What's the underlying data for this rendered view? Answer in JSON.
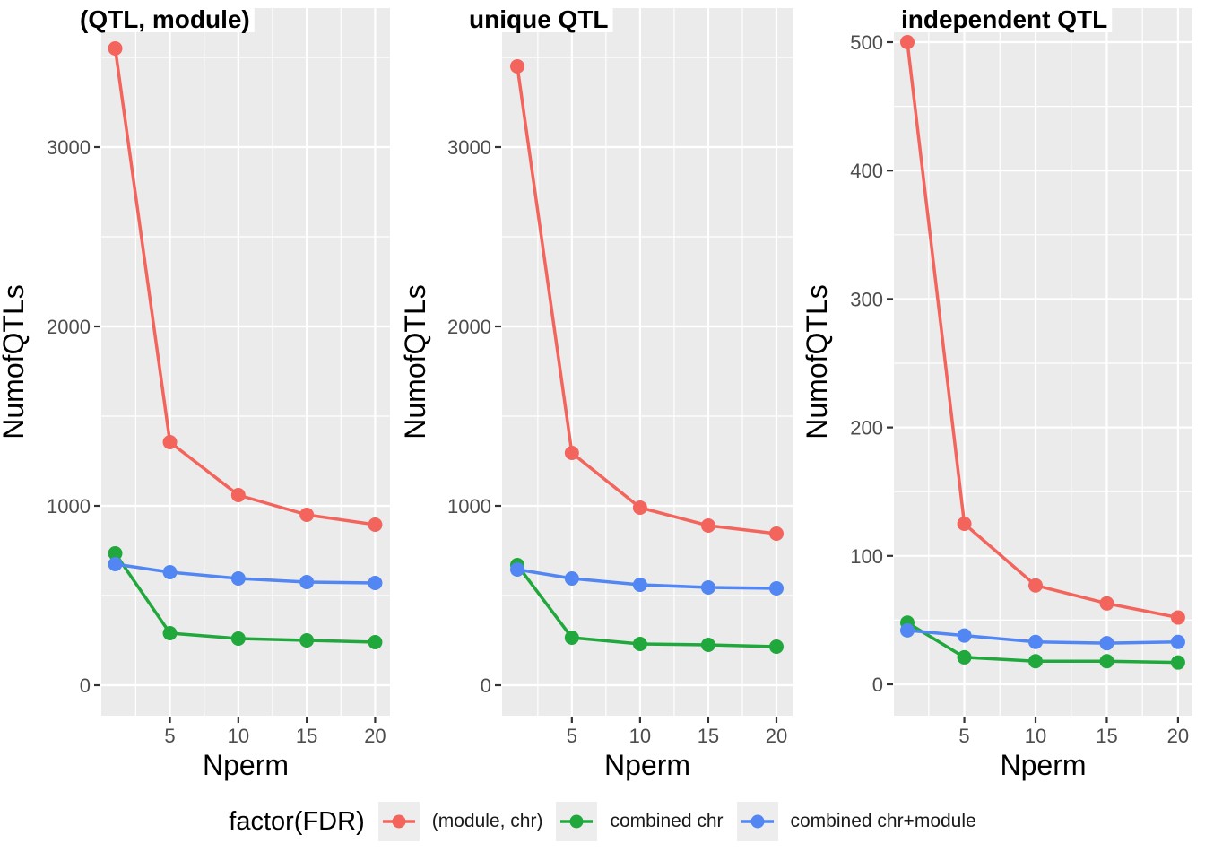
{
  "figure": {
    "x_axis_label": "Nperm",
    "y_axis_label": "NumofQTLs"
  },
  "colors": {
    "red": "#F3645C",
    "green": "#21A83C",
    "blue": "#5286F2",
    "panel_bg": "#EBEBEB",
    "grid": "#FFFFFF",
    "tick_mark": "#333333",
    "tick_text": "#4D4D4D",
    "axis_title_text": "#000000",
    "panel_title_text": "#000000"
  },
  "legend": {
    "title": "factor(FDR)",
    "entries": [
      {
        "label": "(module, chr)",
        "color": "red"
      },
      {
        "label": "combined chr",
        "color": "green"
      },
      {
        "label": "combined chr+module",
        "color": "blue"
      }
    ]
  },
  "chart_data": [
    {
      "type": "line",
      "title": "(QTL, module)",
      "xlabel": "Nperm",
      "ylabel": "NumofQTLs",
      "x": [
        1,
        5,
        10,
        15,
        20
      ],
      "xlim": [
        1,
        20
      ],
      "ylim": [
        0,
        3560
      ],
      "x_major_ticks": [
        5,
        10,
        15,
        20
      ],
      "x_minor_ticks": [
        2.5,
        7.5,
        12.5,
        17.5
      ],
      "y_major_ticks": [
        0,
        1000,
        2000,
        3000
      ],
      "y_minor_ticks": [
        500,
        1500,
        2500,
        3500
      ],
      "grid": true,
      "legend_position": "bottom",
      "series": [
        {
          "name": "(module, chr)",
          "color": "red",
          "values": [
            3550,
            1355,
            1060,
            950,
            895
          ]
        },
        {
          "name": "combined chr",
          "color": "green",
          "values": [
            735,
            290,
            260,
            250,
            240
          ]
        },
        {
          "name": "combined chr+module",
          "color": "blue",
          "values": [
            675,
            630,
            595,
            575,
            570
          ]
        }
      ]
    },
    {
      "type": "line",
      "title": "unique QTL",
      "xlabel": "Nperm",
      "ylabel": "NumofQTLs",
      "x": [
        1,
        5,
        10,
        15,
        20
      ],
      "xlim": [
        1,
        20
      ],
      "ylim": [
        0,
        3450
      ],
      "x_major_ticks": [
        5,
        10,
        15,
        20
      ],
      "x_minor_ticks": [
        2.5,
        7.5,
        12.5,
        17.5
      ],
      "y_major_ticks": [
        0,
        1000,
        2000,
        3000
      ],
      "y_minor_ticks": [
        500,
        1500,
        2500,
        3500
      ],
      "grid": true,
      "legend_position": "bottom",
      "series": [
        {
          "name": "(module, chr)",
          "color": "red",
          "values": [
            3450,
            1295,
            990,
            890,
            845
          ]
        },
        {
          "name": "combined chr",
          "color": "green",
          "values": [
            670,
            265,
            230,
            225,
            215
          ]
        },
        {
          "name": "combined chr+module",
          "color": "blue",
          "values": [
            645,
            595,
            560,
            545,
            540
          ]
        }
      ]
    },
    {
      "type": "line",
      "title": "independent QTL",
      "xlabel": "Nperm",
      "ylabel": "NumofQTLs",
      "x": [
        1,
        5,
        10,
        15,
        20
      ],
      "xlim": [
        1,
        20
      ],
      "ylim": [
        0,
        500
      ],
      "x_major_ticks": [
        5,
        10,
        15,
        20
      ],
      "x_minor_ticks": [
        2.5,
        7.5,
        12.5,
        17.5
      ],
      "y_major_ticks": [
        0,
        100,
        200,
        300,
        400,
        500
      ],
      "y_minor_ticks": [
        50,
        150,
        250,
        350,
        450
      ],
      "grid": true,
      "legend_position": "bottom",
      "series": [
        {
          "name": "(module, chr)",
          "color": "red",
          "values": [
            500,
            125,
            77,
            63,
            52
          ]
        },
        {
          "name": "combined chr",
          "color": "green",
          "values": [
            48,
            21,
            18,
            18,
            17
          ]
        },
        {
          "name": "combined chr+module",
          "color": "blue",
          "values": [
            42,
            38,
            33,
            32,
            33
          ]
        }
      ]
    }
  ]
}
